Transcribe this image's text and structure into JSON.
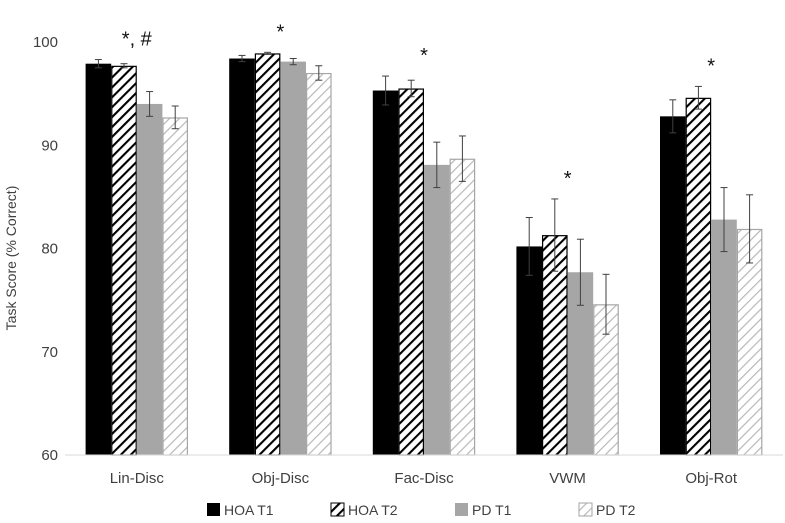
{
  "chart_data": {
    "type": "bar",
    "title": "",
    "xlabel": "",
    "ylabel": "Task Score (% Correct)",
    "ylim": [
      60,
      100
    ],
    "yticks": [
      60,
      70,
      80,
      90,
      100
    ],
    "grid": false,
    "legend_position": "bottom",
    "categories": [
      "Lin-Disc",
      "Obj-Disc",
      "Fac-Disc",
      "VWM",
      "Obj-Rot"
    ],
    "series": [
      {
        "name": "HOA T1",
        "style": "solid",
        "color": "#000000",
        "values": [
          97.9,
          98.4,
          95.3,
          80.2,
          92.8
        ],
        "errors": [
          0.4,
          0.3,
          1.4,
          2.8,
          1.6
        ]
      },
      {
        "name": "HOA T2",
        "style": "hatched",
        "color": "#000000",
        "values": [
          97.7,
          98.9,
          95.5,
          81.3,
          94.6
        ],
        "errors": [
          0.2,
          0.1,
          0.8,
          3.5,
          1.1
        ]
      },
      {
        "name": "PD T1",
        "style": "solid",
        "color": "#a6a6a6",
        "values": [
          94.0,
          98.1,
          88.1,
          77.7,
          82.8
        ],
        "errors": [
          1.2,
          0.3,
          2.2,
          3.2,
          3.1
        ]
      },
      {
        "name": "PD T2",
        "style": "hatched",
        "color": "#a6a6a6",
        "values": [
          92.7,
          97.0,
          88.7,
          74.6,
          81.9
        ],
        "errors": [
          1.1,
          0.7,
          2.2,
          2.9,
          3.3
        ]
      }
    ],
    "annotations": [
      {
        "category": "Lin-Disc",
        "text": "*, #"
      },
      {
        "category": "Obj-Disc",
        "text": "*"
      },
      {
        "category": "Fac-Disc",
        "text": "*"
      },
      {
        "category": "VWM",
        "text": "*"
      },
      {
        "category": "Obj-Rot",
        "text": "*"
      }
    ]
  }
}
